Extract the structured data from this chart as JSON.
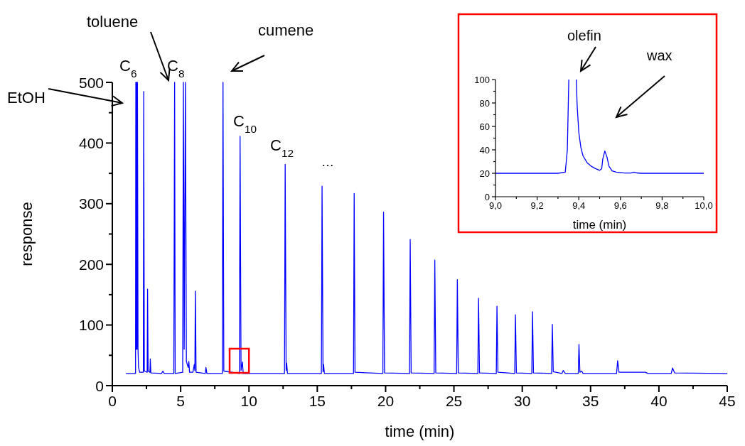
{
  "chart_data": [
    {
      "type": "line",
      "xlabel": "time (min)",
      "ylabel": "response",
      "xlim": [
        0,
        45
      ],
      "ylim": [
        0,
        500
      ],
      "xticks": [
        0,
        {
          "value": 2.5,
          "label": null
        },
        5,
        {
          "value": 7.5,
          "label": null
        },
        10,
        {
          "value": 12.5,
          "label": null
        },
        15,
        {
          "value": 17.5,
          "label": null
        },
        20,
        {
          "value": 22.5,
          "label": null
        },
        25,
        {
          "value": 27.5,
          "label": null
        },
        30,
        {
          "value": 32.5,
          "label": null
        },
        35,
        {
          "value": 37.5,
          "label": null
        },
        40,
        {
          "value": 42.5,
          "label": null
        },
        45
      ],
      "yticks": [
        0,
        {
          "value": 50,
          "label": null
        },
        100,
        {
          "value": 150,
          "label": null
        },
        200,
        {
          "value": 250,
          "label": null
        },
        300,
        {
          "value": 350,
          "label": null
        },
        400,
        {
          "value": 450,
          "label": null
        },
        500
      ],
      "grid": false,
      "marker": "none",
      "line_style": "solid",
      "annotations": [
        "EtOH",
        "C$_{6}$",
        "toluene",
        "C$_{8}$",
        "cumene",
        "C$_{10}$",
        "C$_{12}$",
        "…"
      ],
      "series": [
        {
          "color": "#0000ff",
          "x": [
            1.0,
            1.7,
            1.72,
            1.75,
            1.78,
            1.81,
            1.84,
            1.88,
            1.92,
            2.0,
            2.27,
            2.3,
            2.34,
            2.55,
            2.58,
            2.62,
            2.75,
            2.78,
            2.82,
            3.6,
            3.7,
            3.8,
            4.5,
            4.56,
            4.6,
            5.15,
            5.2,
            5.26,
            5.35,
            5.42,
            5.55,
            5.6,
            5.65,
            5.9,
            6.0,
            6.04,
            6.08,
            6.13,
            6.8,
            6.85,
            6.92,
            8.05,
            8.1,
            8.16,
            9.3,
            9.35,
            9.42,
            9.52,
            9.58,
            12.6,
            12.65,
            12.72,
            12.76,
            12.82,
            15.3,
            15.35,
            15.42,
            15.46,
            15.52,
            17.65,
            17.7,
            17.76,
            19.8,
            19.85,
            19.92,
            21.75,
            21.8,
            21.87,
            23.55,
            23.6,
            23.67,
            25.2,
            25.25,
            25.32,
            26.75,
            26.8,
            26.87,
            28.1,
            28.15,
            28.22,
            29.45,
            29.5,
            29.57,
            30.7,
            30.75,
            30.82,
            32.15,
            32.2,
            32.27,
            32.9,
            33.0,
            33.15,
            34.1,
            34.15,
            34.22,
            34.35,
            34.45,
            36.9,
            36.98,
            37.08,
            39.0,
            39.2,
            40.9,
            41.0,
            41.15,
            45
          ],
          "values": [
            20,
            20,
            500,
            60,
            500,
            60,
            500,
            60,
            30,
            22,
            22,
            485,
            24,
            22,
            159,
            24,
            22,
            44,
            21,
            20,
            24,
            20,
            20,
            500,
            20,
            22,
            500,
            60,
            500,
            40,
            30,
            40,
            22,
            22,
            35,
            25,
            156,
            22,
            20,
            30,
            20,
            20,
            500,
            24,
            20,
            411,
            25,
            39,
            20,
            20,
            365,
            25,
            37,
            20,
            20,
            329,
            23,
            35,
            20,
            20,
            317,
            22,
            20,
            286,
            21,
            20,
            241,
            21,
            20,
            207,
            21,
            20,
            175,
            21,
            20,
            144,
            21,
            20,
            131,
            22,
            20,
            117,
            21,
            20,
            122,
            21,
            20,
            101,
            23,
            20,
            25,
            20,
            20,
            68,
            22,
            24,
            20,
            20,
            41,
            22,
            22,
            20,
            20,
            29,
            21,
            20
          ]
        }
      ]
    },
    {
      "type": "line",
      "xlabel": "time (min)",
      "xlim": [
        9,
        10
      ],
      "ylim": [
        0,
        100
      ],
      "xticks": [
        {
          "value": 9,
          "label": "9,0"
        },
        {
          "value": 9.1,
          "label": null
        },
        {
          "value": 9.2,
          "label": "9,2"
        },
        {
          "value": 9.3,
          "label": null
        },
        {
          "value": 9.4,
          "label": "9,4"
        },
        {
          "value": 9.5,
          "label": null
        },
        {
          "value": 9.6,
          "label": "9,6"
        },
        {
          "value": 9.7,
          "label": null
        },
        {
          "value": 9.8,
          "label": "9,8"
        },
        {
          "value": 9.9,
          "label": null
        },
        {
          "value": 10,
          "label": "10,0"
        }
      ],
      "yticks": [
        0,
        {
          "value": 10,
          "label": null
        },
        20,
        {
          "value": 30,
          "label": null
        },
        40,
        {
          "value": 50,
          "label": null
        },
        60,
        {
          "value": 70,
          "label": null
        },
        80,
        {
          "value": 90,
          "label": null
        },
        100
      ],
      "grid": false,
      "marker": "none",
      "line_style": "solid",
      "annotations": [
        "olefin",
        "wax"
      ],
      "series": [
        {
          "color": "#0000ff",
          "x": [
            9.0,
            9.3,
            9.335,
            9.345,
            9.352,
            9.37,
            9.388,
            9.392,
            9.4,
            9.41,
            9.42,
            9.44,
            9.46,
            9.48,
            9.5,
            9.51,
            9.515,
            9.525,
            9.535,
            9.545,
            9.56,
            9.58,
            9.62,
            9.65,
            9.665,
            9.68,
            9.7,
            10.0
          ],
          "values": [
            20,
            20,
            21,
            40,
            100,
            null,
            100,
            78,
            55,
            42,
            35,
            29,
            26,
            24,
            22.5,
            24,
            32,
            39,
            34,
            26,
            22,
            21,
            20.2,
            20.2,
            21,
            20.3,
            20,
            20
          ]
        }
      ]
    }
  ]
}
